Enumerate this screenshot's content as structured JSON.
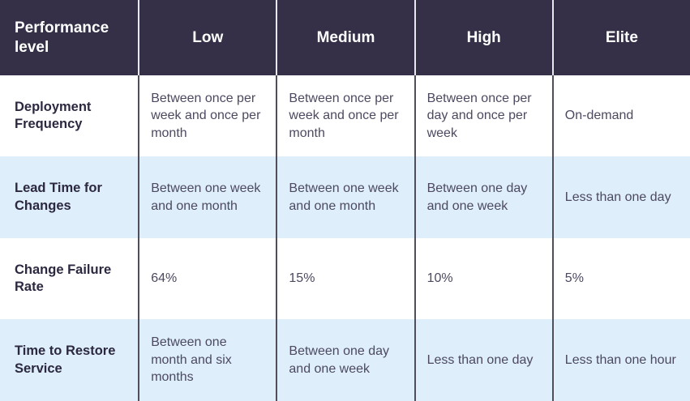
{
  "chart_data": {
    "type": "table",
    "columns": [
      "Performance level",
      "Low",
      "Medium",
      "High",
      "Elite"
    ],
    "rows": [
      [
        "Deployment Frequency",
        "Between once per week and once per month",
        "Between once per week and once per month",
        "Between once per day and once per week",
        "On-demand"
      ],
      [
        "Lead Time for Changes",
        "Between one week and one month",
        "Between one week and one month",
        "Between one day and one week",
        "Less than one day"
      ],
      [
        "Change Failure Rate",
        "64%",
        "15%",
        "10%",
        "5%"
      ],
      [
        "Time to Restore Service",
        "Between one month and six months",
        "Between one day and one week",
        "Less than one day",
        "Less than one hour"
      ]
    ],
    "layout": {
      "header_position": "top",
      "row_striping": [
        "white",
        "light-blue",
        "white",
        "light-blue"
      ],
      "column_dividers": true,
      "row_dividers": false
    }
  },
  "colors": {
    "header_bg": "#353047",
    "header_text": "#ffffff",
    "header_divider": "#e7e7ee",
    "body_divider": "#514e5c",
    "stripe_blue": "#deeefb",
    "stripe_white": "#ffffff",
    "label_text": "#2b2840",
    "body_text": "#4c4960"
  }
}
